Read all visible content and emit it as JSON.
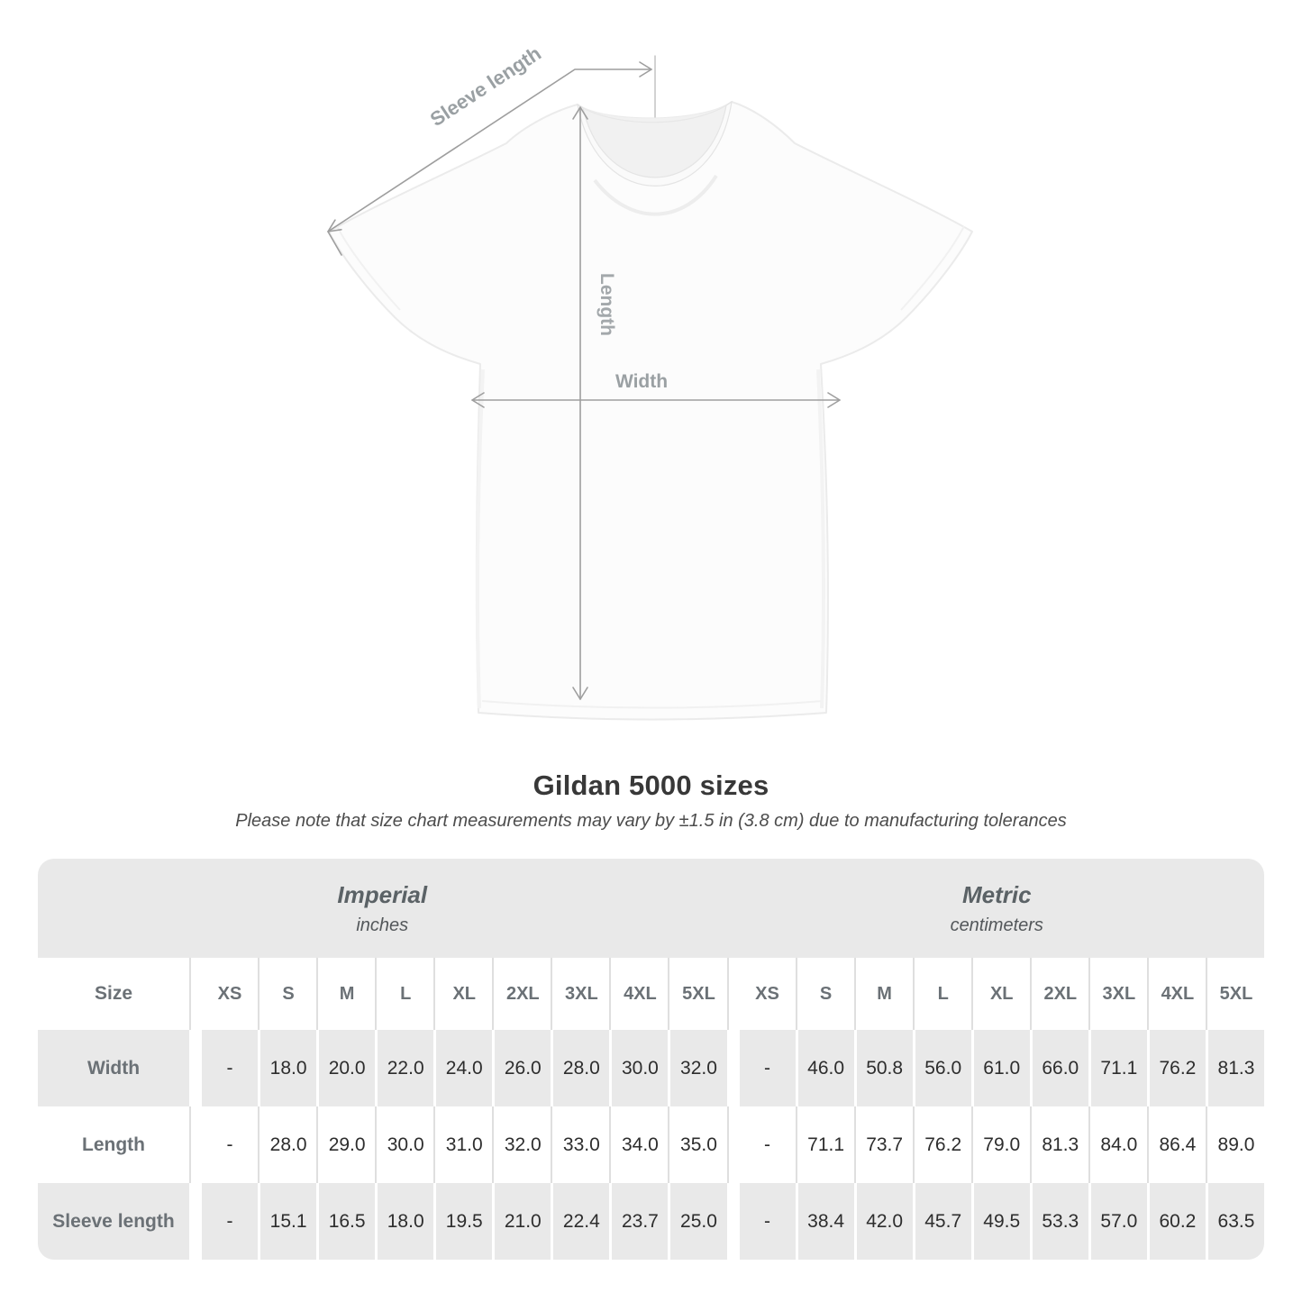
{
  "diagram": {
    "sleeve_length_label": "Sleeve length",
    "length_label": "Length",
    "width_label": "Width"
  },
  "title": "Gildan 5000 sizes",
  "subtitle": "Please note that size chart measurements may vary by ±1.5 in (3.8 cm) due to manufacturing tolerances",
  "size_chart": {
    "groups": [
      {
        "label": "Imperial",
        "unit": "inches"
      },
      {
        "label": "Metric",
        "unit": "centimeters"
      }
    ],
    "size_col_header": "Size",
    "sizes": [
      "XS",
      "S",
      "M",
      "L",
      "XL",
      "2XL",
      "3XL",
      "4XL",
      "5XL"
    ],
    "rows": [
      {
        "label": "Width",
        "imperial": [
          "-",
          "18.0",
          "20.0",
          "22.0",
          "24.0",
          "26.0",
          "28.0",
          "30.0",
          "32.0"
        ],
        "metric": [
          "-",
          "46.0",
          "50.8",
          "56.0",
          "61.0",
          "66.0",
          "71.1",
          "76.2",
          "81.3"
        ]
      },
      {
        "label": "Length",
        "imperial": [
          "-",
          "28.0",
          "29.0",
          "30.0",
          "31.0",
          "32.0",
          "33.0",
          "34.0",
          "35.0"
        ],
        "metric": [
          "-",
          "71.1",
          "73.7",
          "76.2",
          "79.0",
          "81.3",
          "84.0",
          "86.4",
          "89.0"
        ]
      },
      {
        "label": "Sleeve length",
        "imperial": [
          "-",
          "15.1",
          "16.5",
          "18.0",
          "19.5",
          "21.0",
          "22.4",
          "23.7",
          "25.0"
        ],
        "metric": [
          "-",
          "38.4",
          "42.0",
          "45.7",
          "49.5",
          "53.3",
          "57.0",
          "60.2",
          "63.5"
        ]
      }
    ]
  },
  "colors": {
    "annotation_gray": "#9e9e9e",
    "table_band_gray": "#e9e9e9",
    "header_text_gray": "#6b7176",
    "value_text": "#2d2d2d",
    "title_text": "#383838",
    "shirt_outline": "#ebebeb"
  }
}
